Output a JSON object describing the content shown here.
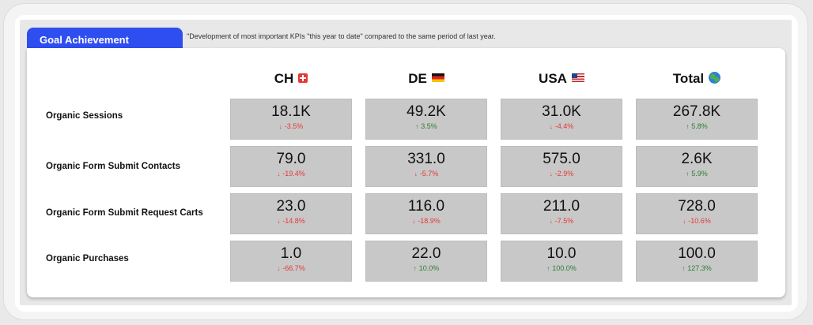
{
  "header": {
    "tab_label": "Goal Achievement",
    "subtitle": "\"Development of most important KPIs \"this year to date\" compared to the same period of last year."
  },
  "columns": [
    {
      "label": "CH",
      "flag": "swiss-flag-icon"
    },
    {
      "label": "DE",
      "flag": "german-flag-icon"
    },
    {
      "label": "USA",
      "flag": "us-flag-icon"
    },
    {
      "label": "Total",
      "flag": "globe-icon"
    }
  ],
  "rows": [
    {
      "label": "Organic Sessions",
      "cells": [
        {
          "value": "18.1K",
          "change": "-3.5%",
          "dir": "down"
        },
        {
          "value": "49.2K",
          "change": "3.5%",
          "dir": "up"
        },
        {
          "value": "31.0K",
          "change": "-4.4%",
          "dir": "down"
        },
        {
          "value": "267.8K",
          "change": "5.8%",
          "dir": "up"
        }
      ]
    },
    {
      "label": "Organic Form Submit Contacts",
      "cells": [
        {
          "value": "79.0",
          "change": "-19.4%",
          "dir": "down"
        },
        {
          "value": "331.0",
          "change": "-5.7%",
          "dir": "down"
        },
        {
          "value": "575.0",
          "change": "-2.9%",
          "dir": "down"
        },
        {
          "value": "2.6K",
          "change": "5.9%",
          "dir": "up"
        }
      ]
    },
    {
      "label": "Organic Form Submit Request Carts",
      "cells": [
        {
          "value": "23.0",
          "change": "-14.8%",
          "dir": "down"
        },
        {
          "value": "116.0",
          "change": "-18.9%",
          "dir": "down"
        },
        {
          "value": "211.0",
          "change": "-7.5%",
          "dir": "down"
        },
        {
          "value": "728.0",
          "change": "-10.6%",
          "dir": "down"
        }
      ]
    },
    {
      "label": "Organic Purchases",
      "cells": [
        {
          "value": "1.0",
          "change": "-66.7%",
          "dir": "down"
        },
        {
          "value": "22.0",
          "change": "10.0%",
          "dir": "up"
        },
        {
          "value": "10.0",
          "change": "100.0%",
          "dir": "up"
        },
        {
          "value": "100.0",
          "change": "127.3%",
          "dir": "up"
        }
      ]
    }
  ],
  "colors": {
    "accent": "#2f4ef0",
    "up": "#2e7d32",
    "down": "#e53935",
    "cell_bg": "#c8c8c8"
  }
}
